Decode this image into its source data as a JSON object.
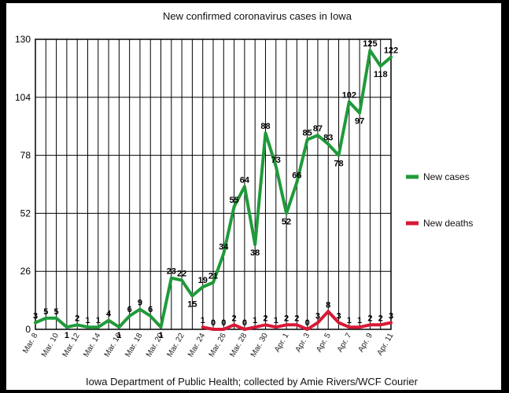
{
  "chart_data": {
    "type": "line",
    "title": "New confirmed coronavirus cases in Iowa",
    "source": "Iowa Department of Public Health; collected by Amie Rivers/WCF Courier",
    "xlabel": "",
    "ylabel": "",
    "ylim": [
      0,
      130
    ],
    "yticks": [
      0,
      26,
      52,
      78,
      104,
      130
    ],
    "grid": true,
    "legend_position": "right",
    "x": [
      "Mar. 8",
      "Mar. 9",
      "Mar. 10",
      "Mar. 11",
      "Mar. 12",
      "Mar. 13",
      "Mar. 14",
      "Mar. 15",
      "Mar. 16",
      "Mar. 17",
      "Mar. 18",
      "Mar. 19",
      "Mar. 20",
      "Mar. 21",
      "Mar. 22",
      "Mar. 23",
      "Mar. 24",
      "Mar. 25",
      "Mar. 26",
      "Mar. 27",
      "Mar. 28",
      "Mar. 29",
      "Mar. 30",
      "Mar. 31",
      "Apr. 1",
      "Apr. 2",
      "Apr. 3",
      "Apr. 4",
      "Apr. 5",
      "Apr. 6",
      "Apr. 7",
      "Apr. 8",
      "Apr. 9",
      "Apr. 10",
      "Apr. 11"
    ],
    "xtick_labels": [
      "Mar. 8",
      "Mar. 10",
      "Mar. 12",
      "Mar. 14",
      "Mar. 16",
      "Mar. 18",
      "Mar. 20",
      "Mar. 22",
      "Mar. 24",
      "Mar. 26",
      "Mar. 28",
      "Mar. 30",
      "Apr. 1",
      "Apr. 3",
      "Apr. 5",
      "Apr. 7",
      "Apr. 9",
      "Apr. 11"
    ],
    "series": [
      {
        "name": "New cases",
        "color": "#1f9a3a",
        "values": [
          3,
          5,
          5,
          1,
          2,
          1,
          1,
          4,
          1,
          6,
          9,
          6,
          1,
          23,
          22,
          15,
          19,
          21,
          34,
          55,
          64,
          38,
          88,
          73,
          52,
          66,
          85,
          87,
          83,
          78,
          102,
          97,
          125,
          118,
          122
        ],
        "labels": [
          "3",
          "5",
          "5",
          "1",
          "2",
          "1",
          "1",
          "4",
          "1",
          "6",
          "9",
          "6",
          "1",
          "23",
          "22",
          "15",
          "19",
          "21",
          "34",
          "55",
          "64",
          "38",
          "88",
          "73",
          "52",
          "66",
          "85",
          "87",
          "83",
          "78",
          "102",
          "97",
          "125",
          "118",
          "122"
        ]
      },
      {
        "name": "New deaths",
        "color": "#d81836",
        "values": [
          null,
          null,
          null,
          null,
          null,
          null,
          null,
          null,
          null,
          null,
          null,
          null,
          null,
          null,
          null,
          null,
          1,
          0,
          0,
          2,
          0,
          1,
          2,
          1,
          2,
          2,
          0,
          3,
          8,
          3,
          1,
          1,
          2,
          2,
          3
        ],
        "labels": [
          null,
          null,
          null,
          null,
          null,
          null,
          null,
          null,
          null,
          null,
          null,
          null,
          null,
          null,
          null,
          null,
          "1",
          "0",
          "0",
          "2",
          "0",
          "1",
          "2",
          "1",
          "2",
          "2",
          "0",
          "3",
          "8",
          "3",
          "1",
          "1",
          "2",
          "2",
          "3"
        ]
      }
    ]
  }
}
